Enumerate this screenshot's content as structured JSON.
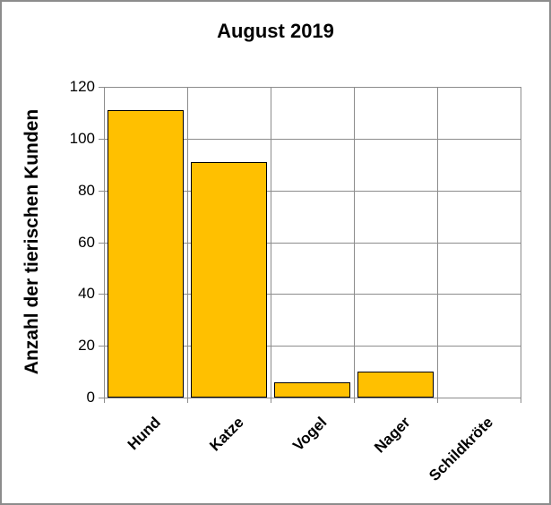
{
  "chart_data": {
    "type": "bar",
    "title": "August 2019",
    "xlabel": "",
    "ylabel": "Anzahl der tierischen Kunden",
    "categories": [
      "Hund",
      "Katze",
      "Vogel",
      "Nager",
      "Schildkröte"
    ],
    "values": [
      111,
      91,
      6,
      10,
      0
    ],
    "ylim": [
      0,
      120
    ],
    "yticks": [
      "0",
      "20",
      "40",
      "60",
      "80",
      "100",
      "120"
    ],
    "grid": {
      "horizontal": true,
      "vertical": true
    },
    "legend": null,
    "colors": {
      "bar_fill": "#ffc000",
      "bar_border": "#000000",
      "grid": "#8c8c8c",
      "frame": "#8c8c8c"
    }
  }
}
